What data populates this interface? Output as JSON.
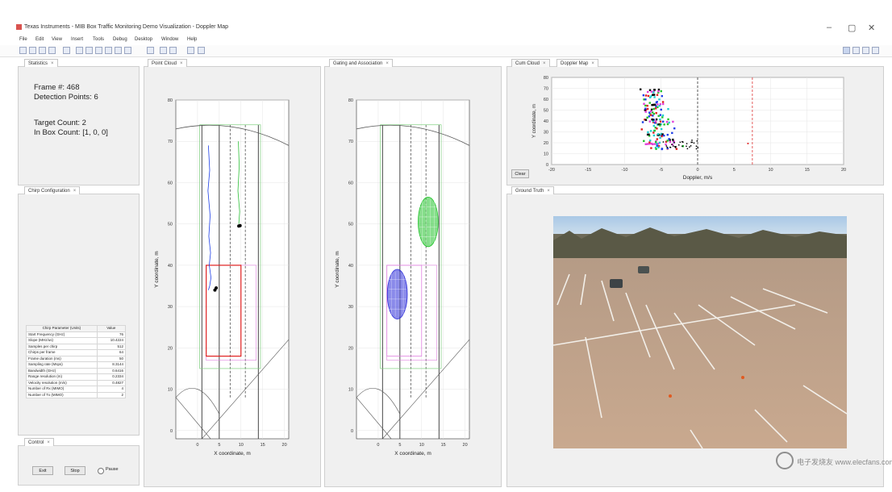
{
  "window": {
    "title": "Texas Instruments - MIB Box Traffic Monitoring Demo Visualization - Doppler Map",
    "controls": [
      "–",
      "▢",
      "✕"
    ]
  },
  "menu": [
    "File",
    "Edit",
    "View",
    "Insert",
    "Tools",
    "Debug",
    "Desktop",
    "Window",
    "Help"
  ],
  "panels": {
    "statistics": {
      "tab": "Statistics",
      "frame": "Frame #: 468",
      "detection_points": "Detection Points: 6",
      "target_count": "Target Count: 2",
      "in_box_count": "In Box Count: [1, 0, 0]"
    },
    "chirp": {
      "tab": "Chirp Configuration",
      "headers": [
        "Chirp Parameter (Units)",
        "Value"
      ],
      "rows": [
        [
          "Start Frequency (GHz)",
          "76"
        ],
        [
          "Slope (MHz/us)",
          "10.4224"
        ],
        [
          "Samples per chirp",
          "512"
        ],
        [
          "Chirps per frame",
          "64"
        ],
        [
          "Frame duration (ms)",
          "50"
        ],
        [
          "Sampling rate (Msps)",
          "8.3144"
        ],
        [
          "Bandwidth (GHz)",
          "0.6416"
        ],
        [
          "Range resolution (m)",
          "0.2334"
        ],
        [
          "Velocity resolution (m/s)",
          "0.4827"
        ],
        [
          "Number of Rx (MIMO)",
          "4"
        ],
        [
          "Number of Tx (MIMO)",
          "2"
        ]
      ]
    },
    "control": {
      "tab": "Control",
      "exit": "Exit",
      "stop": "Stop",
      "pause": "Pause"
    },
    "point_cloud": {
      "tab": "Point Cloud",
      "xlabel": "X coordinate, m",
      "ylabel": "Y coordinate, m"
    },
    "gating": {
      "tab": "Gating and Association",
      "xlabel": "X coordinate, m",
      "ylabel": "Y coordinate, m"
    },
    "doppler": {
      "tabs": [
        "Cum Cloud",
        "Doppler Map"
      ],
      "xlabel": "Doppler, m/s",
      "ylabel": "Y coordinate, m",
      "clear": "Clear"
    },
    "ground_truth": {
      "tab": "Ground Truth"
    }
  },
  "watermark": "电子发烧友 www.elecfans.com",
  "chart_data": [
    {
      "type": "scatter",
      "name": "Point Cloud",
      "xlabel": "X coordinate, m",
      "ylabel": "Y coordinate, m",
      "xlim": [
        -5,
        21
      ],
      "ylim": [
        -2,
        80
      ],
      "xticks": [
        "0",
        "5",
        "10",
        "15",
        "20"
      ],
      "yticks": [
        "0",
        "10",
        "20",
        "30",
        "40",
        "50",
        "60",
        "70",
        "80"
      ],
      "tracks": [
        {
          "color": "#1f3fe8",
          "x": [
            2.5,
            2.8,
            2.4,
            2.9,
            2.6,
            3.0,
            2.7,
            3.1,
            2.8,
            2.5
          ],
          "y": [
            69,
            63,
            58,
            52,
            47,
            43,
            40,
            37,
            35,
            34
          ]
        },
        {
          "color": "#2fbf3a",
          "x": [
            9.4,
            9.6,
            9.3,
            9.7,
            9.5
          ],
          "y": [
            70,
            64,
            58,
            53,
            50
          ]
        }
      ],
      "points": [
        {
          "x": 4.0,
          "y": 34
        },
        {
          "x": 4.3,
          "y": 34.5
        },
        {
          "x": 9.5,
          "y": 49.5
        },
        {
          "x": 9.8,
          "y": 49.6
        }
      ],
      "box": {
        "x": [
          2,
          10
        ],
        "y": [
          18,
          40
        ]
      }
    },
    {
      "type": "scatter",
      "name": "Gating and Association",
      "xlabel": "X coordinate, m",
      "ylabel": "Y coordinate, m",
      "xlim": [
        -5,
        21
      ],
      "ylim": [
        -2,
        80
      ],
      "xticks": [
        "0",
        "5",
        "10",
        "15",
        "20"
      ],
      "yticks": [
        "0",
        "10",
        "20",
        "30",
        "40",
        "50",
        "60",
        "70",
        "80"
      ],
      "gates": [
        {
          "color": "#2a2ad8",
          "cx": 4.4,
          "cy": 33,
          "rx": 2.3,
          "ry": 6
        },
        {
          "color": "#22c32b",
          "cx": 11.5,
          "cy": 50.5,
          "rx": 2.3,
          "ry": 6
        }
      ]
    },
    {
      "type": "scatter",
      "name": "Doppler Map",
      "xlabel": "Doppler, m/s",
      "ylabel": "Y coordinate, m",
      "xlim": [
        -20,
        20
      ],
      "ylim": [
        0,
        80
      ],
      "xticks": [
        "-20",
        "-15",
        "-10",
        "-5",
        "0",
        "5",
        "10",
        "15",
        "20"
      ],
      "yticks": [
        "0",
        "10",
        "20",
        "30",
        "40",
        "50",
        "60",
        "70",
        "80"
      ],
      "vlines": [
        {
          "x": 0,
          "color": "#333"
        },
        {
          "x": 7.5,
          "color": "#d33"
        }
      ]
    }
  ]
}
